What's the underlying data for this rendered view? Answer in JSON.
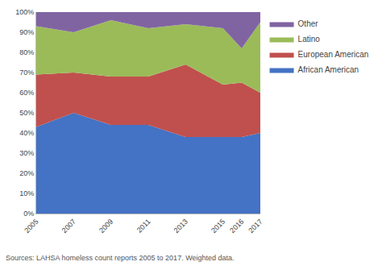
{
  "chart_data": {
    "type": "area",
    "stacked": true,
    "x": [
      2005,
      2007,
      2009,
      2011,
      2013,
      2015,
      2016,
      2017
    ],
    "series": [
      {
        "name": "African American",
        "color": "#4472C4",
        "values": [
          43,
          50,
          44,
          44,
          38,
          38,
          38,
          40
        ]
      },
      {
        "name": "European American",
        "color": "#C0504D",
        "values": [
          26,
          20,
          24,
          24,
          36,
          26,
          27,
          20
        ]
      },
      {
        "name": "Latino",
        "color": "#9BBB59",
        "values": [
          24,
          20,
          28,
          24,
          20,
          28,
          17,
          35
        ]
      },
      {
        "name": "Other",
        "color": "#8064A2",
        "values": [
          7,
          10,
          4,
          8,
          6,
          8,
          18,
          5
        ]
      }
    ],
    "xlim": [
      2005,
      2017
    ],
    "xticks": [
      2005,
      2007,
      2009,
      2011,
      2013,
      2015,
      2016,
      2017
    ],
    "ylim": [
      0,
      100
    ],
    "yticks": [
      {
        "value": 0,
        "label": "0%"
      },
      {
        "value": 10,
        "label": "10%"
      },
      {
        "value": 20,
        "label": "20%"
      },
      {
        "value": 30,
        "label": "30%"
      },
      {
        "value": 40,
        "label": "40%"
      },
      {
        "value": 50,
        "label": "50%"
      },
      {
        "value": 60,
        "label": "60%"
      },
      {
        "value": 70,
        "label": "70%"
      },
      {
        "value": 80,
        "label": "80%"
      },
      {
        "value": 90,
        "label": "90%"
      },
      {
        "value": 100,
        "label": "100%"
      }
    ],
    "grid": "y",
    "legend": "right",
    "annotations": [
      "Sources: LAHSA homeless count reports 2005 to 2017. Weighted data."
    ]
  }
}
